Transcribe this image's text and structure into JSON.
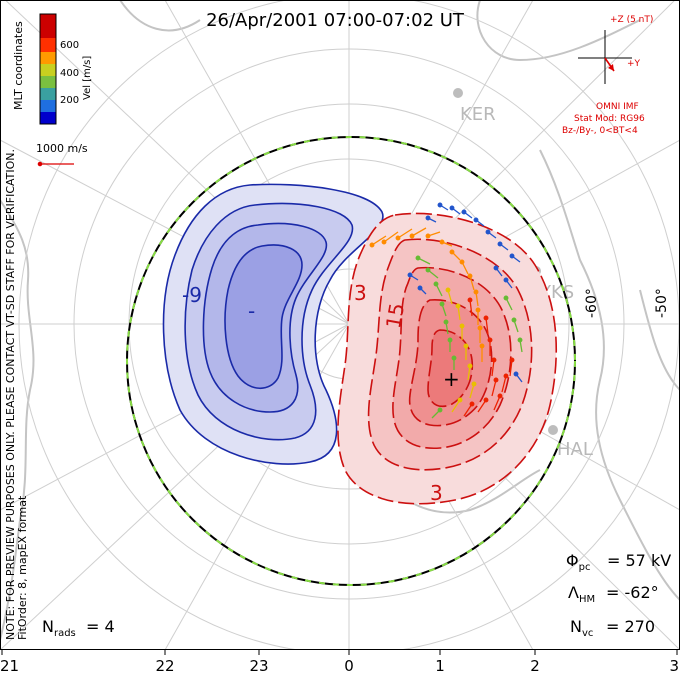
{
  "title": "26/Apr/2001 07:00-07:02 UT",
  "colorbar": {
    "label": "Vel [m/s]",
    "ticks": [
      "600",
      "400",
      "200"
    ],
    "colors": [
      "#0000cc",
      "#1f6fe0",
      "#3aa0a0",
      "#7ac040",
      "#c8d020",
      "#ff9a00",
      "#ff3000",
      "#cc0000"
    ]
  },
  "coordinates_label": "MLT coordinates",
  "reference_vector_label": "1000 m/s",
  "left_notes": {
    "line1": "NOTE: FOR PREVIEW PURPOSES ONLY. PLEASE CONTACT VT-SD STAFF FOR VERIFICATION.",
    "line2": "FitOrder: 8, mapEX format"
  },
  "imf": {
    "z_label": "+Z (5 nT)",
    "y_label": "+Y",
    "source": "OMNI IMF",
    "stat_model": "Stat Mod: RG96",
    "condition": "Bz-/By-, 0<BT<4",
    "color": "#dd0000"
  },
  "stations": [
    "KER",
    "YKS",
    "HAL"
  ],
  "latitude_labels": [
    "-60°",
    "-50°"
  ],
  "contours": {
    "negative_labels": [
      "-9",
      "-"
    ],
    "positive_labels": [
      "3",
      "15",
      "3",
      "+"
    ],
    "negative_color": "#1a2aa8",
    "positive_color": "#cc1010"
  },
  "stats": {
    "phi_pc": "= 57 kV",
    "lambda_hm": "= -62°",
    "n_vc": "= 270",
    "n_rads": "= 4"
  },
  "mlt_axis": [
    "21",
    "22",
    "23",
    "0",
    "1",
    "2",
    "3"
  ]
}
